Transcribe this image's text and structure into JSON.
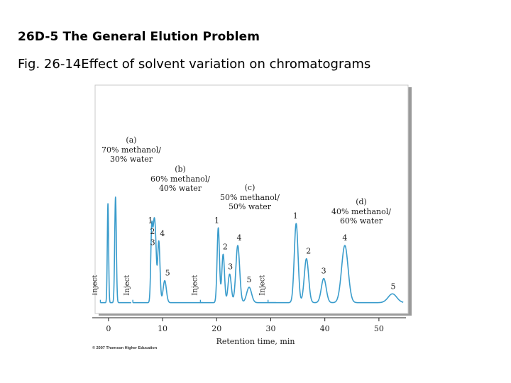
{
  "slide": {
    "title": "26D-5 The General Elution Problem",
    "caption": "Fig. 26-14Effect of solvent variation on chromatograms"
  },
  "copyright": "© 2007 Thomson Higher Education",
  "colors": {
    "trace": "#3a9ccc",
    "panel": "#ffffff",
    "frame": "#8e8e8e",
    "axis": "#222222"
  },
  "chart_data": {
    "type": "line",
    "title": "Effect of solvent variation on chromatograms",
    "xlabel": "Retention time, min",
    "ylabel": "",
    "xlim": [
      -3,
      55
    ],
    "ylim": [
      0,
      100
    ],
    "xticks": [
      0,
      10,
      20,
      30,
      40,
      50
    ],
    "grid": false,
    "series": [
      {
        "id": "a",
        "label": "(a)",
        "solvent": [
          "70% methanol/",
          "30% water"
        ],
        "inject_label": "Inject",
        "inject_time": -1.5,
        "end_time": 4.2,
        "baseline": 3,
        "peaks": [
          {
            "id": "1",
            "rt": -0.1,
            "height": 45,
            "width": 0.12
          },
          {
            "id": "2",
            "rt": 1.3,
            "height": 48,
            "width": 0.15
          }
        ]
      },
      {
        "id": "b",
        "label": "(b)",
        "solvent": [
          "60% methanol/",
          "40% water"
        ],
        "inject_label": "Inject",
        "inject_time": 4.5,
        "end_time": 17.5,
        "baseline": 3,
        "peaks": [
          {
            "id": "1",
            "rt": 8.0,
            "height": 34,
            "width": 0.18
          },
          {
            "id": "2",
            "rt": 8.4,
            "height": 29,
            "width": 0.18
          },
          {
            "id": "3",
            "rt": 8.7,
            "height": 24,
            "width": 0.18
          },
          {
            "id": "4",
            "rt": 9.3,
            "height": 28,
            "width": 0.22
          },
          {
            "id": "5",
            "rt": 10.4,
            "height": 10,
            "width": 0.3
          }
        ]
      },
      {
        "id": "c",
        "label": "(c)",
        "solvent": [
          "50% methanol/",
          "50% water"
        ],
        "inject_label": "Inject",
        "inject_time": 17.0,
        "end_time": 31.0,
        "baseline": 3,
        "peaks": [
          {
            "id": "1",
            "rt": 20.3,
            "height": 34,
            "width": 0.22
          },
          {
            "id": "2",
            "rt": 21.2,
            "height": 22,
            "width": 0.25
          },
          {
            "id": "3",
            "rt": 22.4,
            "height": 13,
            "width": 0.3
          },
          {
            "id": "4",
            "rt": 23.9,
            "height": 26,
            "width": 0.35
          },
          {
            "id": "5",
            "rt": 26.0,
            "height": 7,
            "width": 0.45
          }
        ]
      },
      {
        "id": "d",
        "label": "(d)",
        "solvent": [
          "40% methanol/",
          "60% water"
        ],
        "inject_label": "Inject",
        "inject_time": 29.5,
        "end_time": 54.5,
        "baseline": 3,
        "peaks": [
          {
            "id": "1",
            "rt": 34.7,
            "height": 36,
            "width": 0.35
          },
          {
            "id": "2",
            "rt": 36.6,
            "height": 20,
            "width": 0.4
          },
          {
            "id": "3",
            "rt": 39.8,
            "height": 11,
            "width": 0.45
          },
          {
            "id": "4",
            "rt": 43.7,
            "height": 26,
            "width": 0.6
          },
          {
            "id": "5",
            "rt": 52.5,
            "height": 4,
            "width": 0.8
          }
        ]
      }
    ]
  }
}
